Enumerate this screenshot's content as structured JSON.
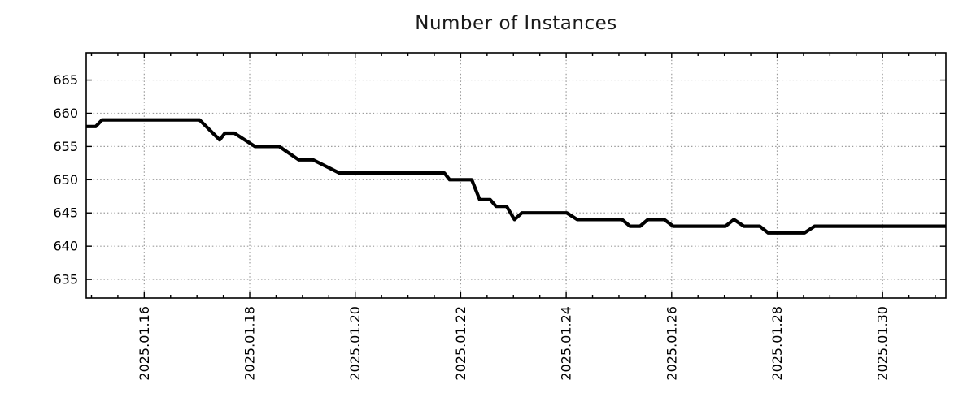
{
  "chart": {
    "title": "Number of Instances"
  },
  "chart_data": {
    "type": "line",
    "title": "Number of Instances",
    "xlabel": "",
    "ylabel": "",
    "legend": "none",
    "grid": {
      "show": true,
      "color": "#9c9c9c",
      "style": "dotted"
    },
    "colors": {
      "line": "#000000",
      "axis": "#000000",
      "text": "#000000",
      "title": "#1a1a1a",
      "background": "#ffffff"
    },
    "line_width": 4.2,
    "x_axis": {
      "unit": "days-since-2025.01.16",
      "range": [
        -1.1,
        15.2
      ],
      "tick_rotation": -90,
      "major_ticks": [
        {
          "d": 0,
          "label": "2025.01.16"
        },
        {
          "d": 2,
          "label": "2025.01.18"
        },
        {
          "d": 4,
          "label": "2025.01.20"
        },
        {
          "d": 6,
          "label": "2025.01.22"
        },
        {
          "d": 8,
          "label": "2025.01.24"
        },
        {
          "d": 10,
          "label": "2025.01.26"
        },
        {
          "d": 12,
          "label": "2025.01.28"
        },
        {
          "d": 14,
          "label": "2025.01.30"
        }
      ],
      "minor_tick_interval": 0.5
    },
    "y_axis": {
      "range": [
        632.2,
        669.1
      ],
      "major_ticks": [
        665,
        660,
        655,
        650,
        645,
        640,
        635
      ]
    },
    "series": [
      {
        "name": "instances",
        "color": "#000000",
        "points": [
          [
            -1.1,
            658
          ],
          [
            -0.92,
            658
          ],
          [
            -0.8,
            659
          ],
          [
            1.05,
            659
          ],
          [
            1.43,
            656
          ],
          [
            1.53,
            657
          ],
          [
            1.71,
            657
          ],
          [
            2.1,
            655
          ],
          [
            2.56,
            655
          ],
          [
            2.93,
            653
          ],
          [
            3.2,
            653
          ],
          [
            3.7,
            651
          ],
          [
            5.69,
            651
          ],
          [
            5.79,
            650
          ],
          [
            6.21,
            650
          ],
          [
            6.36,
            647
          ],
          [
            6.56,
            647
          ],
          [
            6.67,
            646
          ],
          [
            6.87,
            646
          ],
          [
            7.02,
            644
          ],
          [
            7.16,
            645
          ],
          [
            8.01,
            645
          ],
          [
            8.21,
            644
          ],
          [
            9.06,
            644
          ],
          [
            9.21,
            643
          ],
          [
            9.4,
            643
          ],
          [
            9.55,
            644
          ],
          [
            9.86,
            644
          ],
          [
            10.03,
            643
          ],
          [
            11.02,
            643
          ],
          [
            11.18,
            644
          ],
          [
            11.37,
            643
          ],
          [
            11.67,
            643
          ],
          [
            11.83,
            642
          ],
          [
            12.52,
            642
          ],
          [
            12.71,
            643
          ],
          [
            15.2,
            643
          ]
        ]
      }
    ]
  }
}
